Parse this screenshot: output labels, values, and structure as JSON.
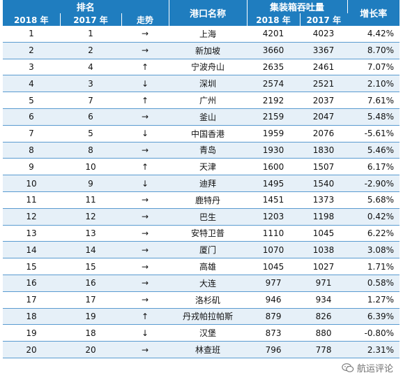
{
  "header": {
    "rank": "排名",
    "port": "港口名称",
    "throughput": "集装箱吞吐量",
    "growth": "增长率",
    "y2018": "2018 年",
    "y2017": "2017 年",
    "trend": "走势"
  },
  "rows": [
    {
      "r18": "1",
      "r17": "1",
      "trend": "→",
      "port": "上海",
      "t18": "4201",
      "t17": "4023",
      "rate": "4.42%"
    },
    {
      "r18": "2",
      "r17": "2",
      "trend": "→",
      "port": "新加坡",
      "t18": "3660",
      "t17": "3367",
      "rate": "8.70%"
    },
    {
      "r18": "3",
      "r17": "4",
      "trend": "↑",
      "port": "宁波舟山",
      "t18": "2635",
      "t17": "2461",
      "rate": "7.07%"
    },
    {
      "r18": "4",
      "r17": "3",
      "trend": "↓",
      "port": "深圳",
      "t18": "2574",
      "t17": "2521",
      "rate": "2.10%"
    },
    {
      "r18": "5",
      "r17": "7",
      "trend": "↑",
      "port": "广州",
      "t18": "2192",
      "t17": "2037",
      "rate": "7.61%"
    },
    {
      "r18": "6",
      "r17": "6",
      "trend": "→",
      "port": "釜山",
      "t18": "2159",
      "t17": "2047",
      "rate": "5.48%"
    },
    {
      "r18": "7",
      "r17": "5",
      "trend": "↓",
      "port": "中国香港",
      "t18": "1959",
      "t17": "2076",
      "rate": "-5.61%"
    },
    {
      "r18": "8",
      "r17": "8",
      "trend": "→",
      "port": "青岛",
      "t18": "1930",
      "t17": "1830",
      "rate": "5.46%"
    },
    {
      "r18": "9",
      "r17": "10",
      "trend": "↑",
      "port": "天津",
      "t18": "1600",
      "t17": "1507",
      "rate": "6.17%"
    },
    {
      "r18": "10",
      "r17": "9",
      "trend": "↓",
      "port": "迪拜",
      "t18": "1495",
      "t17": "1540",
      "rate": "-2.90%"
    },
    {
      "r18": "11",
      "r17": "11",
      "trend": "→",
      "port": "鹿特丹",
      "t18": "1451",
      "t17": "1373",
      "rate": "5.68%"
    },
    {
      "r18": "12",
      "r17": "12",
      "trend": "→",
      "port": "巴生",
      "t18": "1203",
      "t17": "1198",
      "rate": "0.42%"
    },
    {
      "r18": "13",
      "r17": "13",
      "trend": "→",
      "port": "安特卫普",
      "t18": "1110",
      "t17": "1045",
      "rate": "6.22%"
    },
    {
      "r18": "14",
      "r17": "14",
      "trend": "→",
      "port": "厦门",
      "t18": "1070",
      "t17": "1038",
      "rate": "3.08%"
    },
    {
      "r18": "15",
      "r17": "15",
      "trend": "→",
      "port": "高雄",
      "t18": "1045",
      "t17": "1027",
      "rate": "1.71%"
    },
    {
      "r18": "16",
      "r17": "16",
      "trend": "→",
      "port": "大连",
      "t18": "977",
      "t17": "971",
      "rate": "0.58%"
    },
    {
      "r18": "17",
      "r17": "17",
      "trend": "→",
      "port": "洛杉矶",
      "t18": "946",
      "t17": "934",
      "rate": "1.27%"
    },
    {
      "r18": "18",
      "r17": "19",
      "trend": "↑",
      "port": "丹戎帕拉帕斯",
      "t18": "879",
      "t17": "826",
      "rate": "6.39%"
    },
    {
      "r18": "19",
      "r17": "18",
      "trend": "↓",
      "port": "汉堡",
      "t18": "873",
      "t17": "880",
      "rate": "-0.80%"
    },
    {
      "r18": "20",
      "r17": "20",
      "trend": "→",
      "port": "林查班",
      "t18": "796",
      "t17": "778",
      "rate": "2.31%"
    }
  ],
  "watermark": {
    "text": "航运评论",
    "icon": "wechat-icon"
  }
}
